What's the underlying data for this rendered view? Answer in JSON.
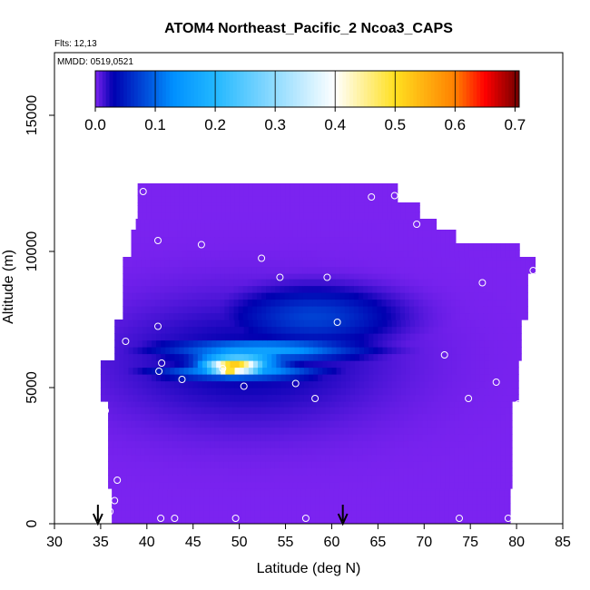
{
  "chart_data": {
    "type": "heatmap",
    "title": "ATOM4 Northeast_Pacific_2 Ncoa3_CAPS",
    "subtitles": [
      "Flts: 12,13",
      "MMDD: 0519,0521"
    ],
    "xlabel": "Latitude (deg N)",
    "ylabel": "Altitude (m)",
    "xlim": [
      30,
      85
    ],
    "ylim": [
      0,
      17300
    ],
    "xticks": [
      "30",
      "35",
      "40",
      "45",
      "50",
      "55",
      "60",
      "65",
      "70",
      "75",
      "80",
      "85"
    ],
    "yticks": [
      "0",
      "5000",
      "10000",
      "15000"
    ],
    "colorbar": {
      "range": [
        0,
        0.707
      ],
      "ticks": [
        "0.0",
        "0.1",
        "0.2",
        "0.3",
        "0.4",
        "0.5",
        "0.6",
        "0.7"
      ],
      "colors": [
        "#7b23f0",
        "#0000b0",
        "#0090ff",
        "#22b8ff",
        "#ffffff",
        "#ffe020",
        "#ff8000",
        "#ff0000",
        "#700000"
      ],
      "stops": [
        0,
        0.03,
        0.13,
        0.2,
        0.4,
        0.5,
        0.6,
        0.65,
        0.707
      ]
    },
    "coverage": [
      {
        "y0": 0,
        "y1": 1300,
        "x0": 36.2,
        "x1": 79.3
      },
      {
        "y0": 1300,
        "y1": 4500,
        "x0": 35.8,
        "x1": 79.5
      },
      {
        "y0": 4500,
        "y1": 6000,
        "x0": 35.0,
        "x1": 80.2
      },
      {
        "y0": 6000,
        "y1": 7500,
        "x0": 36.5,
        "x1": 80.5
      },
      {
        "y0": 7500,
        "y1": 9200,
        "x0": 37.4,
        "x1": 81.2
      },
      {
        "y0": 9200,
        "y1": 9800,
        "x0": 37.4,
        "x1": 82.0
      },
      {
        "y0": 9800,
        "y1": 10300,
        "x0": 38.3,
        "x1": 80.3
      },
      {
        "y0": 10300,
        "y1": 10800,
        "x0": 38.3,
        "x1": 73.4
      },
      {
        "y0": 10800,
        "y1": 11200,
        "x0": 38.8,
        "x1": 71.3
      },
      {
        "y0": 11200,
        "y1": 11800,
        "x0": 39.0,
        "x1": 69.5
      },
      {
        "y0": 11800,
        "y1": 12500,
        "x0": 39.0,
        "x1": 67.1
      }
    ],
    "features": [
      {
        "cx": 51.0,
        "cy": 6000,
        "rx": 16.0,
        "ry": 2500,
        "v": 0.032
      },
      {
        "cx": 58.0,
        "cy": 7600,
        "rx": 9.0,
        "ry": 1100,
        "v": 0.075
      },
      {
        "cx": 52.5,
        "cy": 6400,
        "rx": 10.5,
        "ry": 400,
        "v": 0.16
      },
      {
        "cx": 50.0,
        "cy": 5600,
        "rx": 8.5,
        "ry": 300,
        "v": 0.17
      },
      {
        "cx": 50.0,
        "cy": 6000,
        "rx": 5.0,
        "ry": 600,
        "v": 0.25
      },
      {
        "cx": 49.5,
        "cy": 5800,
        "rx": 3.5,
        "ry": 350,
        "v": 0.55
      },
      {
        "cx": 49.0,
        "cy": 5750,
        "rx": 1.8,
        "ry": 250,
        "v": 0.68
      }
    ],
    "points": [
      [
        39.6,
        12200
      ],
      [
        64.3,
        12000
      ],
      [
        66.8,
        12050
      ],
      [
        69.2,
        11000
      ],
      [
        41.2,
        10400
      ],
      [
        45.9,
        10250
      ],
      [
        52.4,
        9750
      ],
      [
        54.4,
        9050
      ],
      [
        59.5,
        9050
      ],
      [
        76.3,
        8850
      ],
      [
        81.8,
        9300
      ],
      [
        41.2,
        7250
      ],
      [
        60.6,
        7400
      ],
      [
        37.7,
        6700
      ],
      [
        72.2,
        6200
      ],
      [
        41.6,
        5900
      ],
      [
        48.2,
        5700
      ],
      [
        41.3,
        5600
      ],
      [
        43.8,
        5300
      ],
      [
        50.5,
        5050
      ],
      [
        56.1,
        5150
      ],
      [
        58.2,
        4600
      ],
      [
        77.8,
        5200
      ],
      [
        74.8,
        4600
      ],
      [
        80.2,
        4400
      ],
      [
        35.5,
        4150
      ],
      [
        36.8,
        1600
      ],
      [
        36.5,
        850
      ],
      [
        36.0,
        450
      ],
      [
        41.5,
        200
      ],
      [
        43.0,
        200
      ],
      [
        49.6,
        200
      ],
      [
        57.2,
        200
      ],
      [
        73.8,
        200
      ],
      [
        79.1,
        200
      ]
    ],
    "arrows": [
      {
        "x": 34.7,
        "label": ""
      },
      {
        "x": 61.2,
        "label": ""
      }
    ]
  }
}
